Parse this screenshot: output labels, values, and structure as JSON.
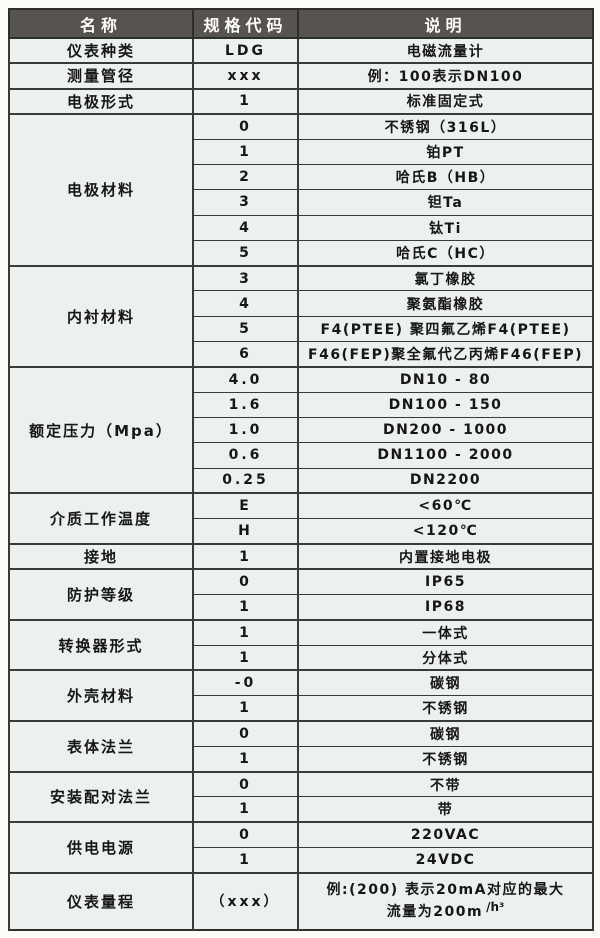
{
  "colors": {
    "header_bg": "#57534f",
    "header_text": "#ffffff",
    "body_bg": "#edf1ee",
    "border": "#2e2e2c",
    "text": "#161616"
  },
  "table": {
    "header": {
      "name": "名称",
      "code": "规格代码",
      "desc": "说明"
    },
    "sections": [
      {
        "name": "仪表种类",
        "rows": [
          {
            "code": "LDG",
            "desc": "电磁流量计"
          }
        ]
      },
      {
        "name": "测量管径",
        "rows": [
          {
            "code": "xxx",
            "desc": "例：100表示DN100"
          }
        ]
      },
      {
        "name": "电极形式",
        "rows": [
          {
            "code": "1",
            "desc": "标准固定式"
          }
        ]
      },
      {
        "name": "电极材料",
        "rows": [
          {
            "code": "0",
            "desc": "不锈钢（316L）"
          },
          {
            "code": "1",
            "desc": "铂PT"
          },
          {
            "code": "2",
            "desc": "哈氏B（HB）"
          },
          {
            "code": "3",
            "desc": "钽Ta"
          },
          {
            "code": "4",
            "desc": "钛Ti"
          },
          {
            "code": "5",
            "desc": "哈氏C（HC）"
          }
        ]
      },
      {
        "name": "内衬材料",
        "rows": [
          {
            "code": "3",
            "desc": "氯丁橡胶"
          },
          {
            "code": "4",
            "desc": "聚氨酯橡胶"
          },
          {
            "code": "5",
            "desc": "F4(PTEE) 聚四氟乙烯F4(PTEE)"
          },
          {
            "code": "6",
            "desc": "F46(FEP)聚全氟代乙丙烯F46(FEP)"
          }
        ]
      },
      {
        "name": "额定压力（Mpa）",
        "rows": [
          {
            "code": "4.0",
            "desc": "DN10 - 80"
          },
          {
            "code": "1.6",
            "desc": "DN100 - 150"
          },
          {
            "code": "1.0",
            "desc": "DN200 - 1000"
          },
          {
            "code": "0.6",
            "desc": "DN1100 - 2000"
          },
          {
            "code": "0.25",
            "desc": "DN2200"
          }
        ]
      },
      {
        "name": "介质工作温度",
        "rows": [
          {
            "code": "E",
            "desc": "<60℃"
          },
          {
            "code": "H",
            "desc": "<120℃"
          }
        ]
      },
      {
        "name": "接地",
        "rows": [
          {
            "code": "1",
            "desc": "内置接地电极"
          }
        ]
      },
      {
        "name": "防护等级",
        "rows": [
          {
            "code": "0",
            "desc": "IP65"
          },
          {
            "code": "1",
            "desc": "IP68"
          }
        ]
      },
      {
        "name": "转换器形式",
        "rows": [
          {
            "code": "1",
            "desc": "一体式"
          },
          {
            "code": "1",
            "desc": "分体式"
          }
        ]
      },
      {
        "name": "外壳材料",
        "rows": [
          {
            "code": "-0",
            "desc": "碳钢"
          },
          {
            "code": "1",
            "desc": "不锈钢"
          }
        ]
      },
      {
        "name": "表体法兰",
        "rows": [
          {
            "code": "0",
            "desc": "碳钢"
          },
          {
            "code": "1",
            "desc": "不锈钢"
          }
        ]
      },
      {
        "name": "安装配对法兰",
        "rows": [
          {
            "code": "0",
            "desc": "不带"
          },
          {
            "code": "1",
            "desc": "带"
          }
        ]
      },
      {
        "name": "供电电源",
        "rows": [
          {
            "code": "0",
            "desc": "220VAC"
          },
          {
            "code": "1",
            "desc": "24VDC"
          }
        ]
      },
      {
        "name": "仪表量程",
        "rows": [
          {
            "code": "（xxx）",
            "tall": true,
            "desc_line1": "例:(200) 表示20mA对应的最大",
            "desc_line2": "流量为200m",
            "desc_sup": "/h³"
          }
        ]
      }
    ]
  }
}
